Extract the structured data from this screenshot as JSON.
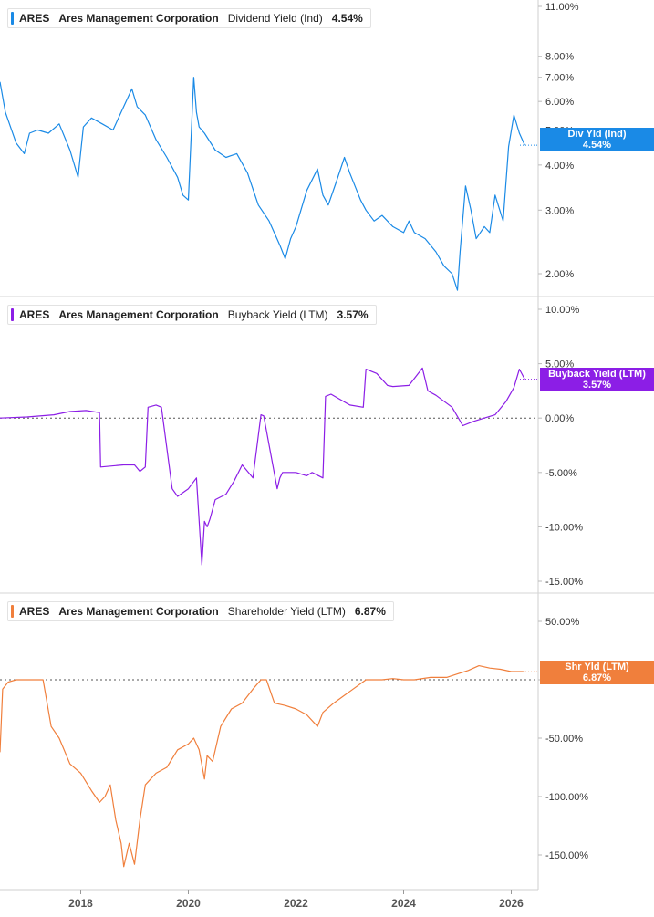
{
  "x_axis": {
    "ticks": [
      "2018",
      "2020",
      "2022",
      "2024",
      "2026"
    ]
  },
  "colors": {
    "dividend": "#1a8ae6",
    "buyback": "#8c1ee6",
    "shareholder": "#f07f3c"
  },
  "chart_data": [
    {
      "type": "line",
      "ticker": "ARES",
      "company": "Ares Management Corporation",
      "metric": "Dividend Yield (Ind)",
      "current_value": "4.54%",
      "tag_title": "Div Yld (Ind)",
      "tag_value": "4.54%",
      "scale": "log",
      "ylim": [
        1.6,
        11.5
      ],
      "y_ticks": [
        {
          "value": 11,
          "label": "11.00%"
        },
        {
          "value": 8,
          "label": "8.00%"
        },
        {
          "value": 7,
          "label": "7.00%"
        },
        {
          "value": 6,
          "label": "6.00%"
        },
        {
          "value": 5,
          "label": "5.00%"
        },
        {
          "value": 4,
          "label": "4.00%"
        },
        {
          "value": 3,
          "label": "3.00%"
        },
        {
          "value": 2,
          "label": "2.00%"
        }
      ],
      "zero_line": false,
      "series": [
        {
          "x": [
            2016.5,
            2016.6,
            2016.8,
            2016.95,
            2017.05,
            2017.2,
            2017.4,
            2017.6,
            2017.8,
            2017.95,
            2018.05,
            2018.2,
            2018.4,
            2018.6,
            2018.75,
            2018.95,
            2019.05,
            2019.2,
            2019.4,
            2019.6,
            2019.8,
            2019.9,
            2020.0,
            2020.1,
            2020.15,
            2020.2,
            2020.3,
            2020.5,
            2020.7,
            2020.9,
            2021.1,
            2021.3,
            2021.5,
            2021.7,
            2021.8,
            2021.9,
            2022.0,
            2022.2,
            2022.4,
            2022.5,
            2022.6,
            2022.75,
            2022.9,
            2023.0,
            2023.2,
            2023.3,
            2023.45,
            2023.6,
            2023.8,
            2024.0,
            2024.1,
            2024.2,
            2024.4,
            2024.6,
            2024.75,
            2024.9,
            2025.0,
            2025.05,
            2025.15,
            2025.25,
            2025.35,
            2025.5,
            2025.6,
            2025.7,
            2025.85,
            2025.95,
            2026.05,
            2026.15,
            2026.25
          ],
          "y": [
            6.8,
            5.6,
            4.6,
            4.3,
            4.9,
            5.0,
            4.9,
            5.2,
            4.4,
            3.7,
            5.1,
            5.4,
            5.2,
            5.0,
            5.6,
            6.5,
            5.8,
            5.5,
            4.7,
            4.2,
            3.7,
            3.3,
            3.2,
            7.0,
            5.6,
            5.1,
            4.9,
            4.4,
            4.2,
            4.3,
            3.8,
            3.1,
            2.8,
            2.4,
            2.2,
            2.5,
            2.7,
            3.4,
            3.9,
            3.3,
            3.1,
            3.6,
            4.2,
            3.8,
            3.2,
            3.0,
            2.8,
            2.9,
            2.7,
            2.6,
            2.8,
            2.6,
            2.5,
            2.3,
            2.1,
            2.0,
            1.8,
            2.3,
            3.5,
            3.0,
            2.5,
            2.7,
            2.6,
            3.3,
            2.8,
            4.5,
            5.5,
            4.9,
            4.54
          ]
        }
      ]
    },
    {
      "type": "line",
      "ticker": "ARES",
      "company": "Ares Management Corporation",
      "metric": "Buyback Yield (LTM)",
      "current_value": "3.57%",
      "tag_title": "Buyback Yield (LTM)",
      "tag_value": "3.57%",
      "scale": "linear",
      "ylim": [
        -16,
        11
      ],
      "y_ticks": [
        {
          "value": 10,
          "label": "10.00%"
        },
        {
          "value": 5,
          "label": "5.00%"
        },
        {
          "value": 0,
          "label": "0.00%"
        },
        {
          "value": -5,
          "label": "-5.00%"
        },
        {
          "value": -10,
          "label": "-10.00%"
        },
        {
          "value": -15,
          "label": "-15.00%"
        }
      ],
      "zero_line": true,
      "series": [
        {
          "x": [
            2016.5,
            2017.0,
            2017.5,
            2017.8,
            2018.1,
            2018.35,
            2018.37,
            2018.8,
            2019.0,
            2019.1,
            2019.2,
            2019.25,
            2019.4,
            2019.5,
            2019.7,
            2019.8,
            2020.0,
            2020.15,
            2020.25,
            2020.3,
            2020.35,
            2020.4,
            2020.5,
            2020.7,
            2020.85,
            2021.0,
            2021.2,
            2021.35,
            2021.4,
            2021.65,
            2021.7,
            2021.75,
            2022.0,
            2022.2,
            2022.3,
            2022.5,
            2022.55,
            2022.65,
            2023.0,
            2023.25,
            2023.3,
            2023.5,
            2023.7,
            2023.8,
            2024.1,
            2024.35,
            2024.45,
            2024.6,
            2024.9,
            2025.1,
            2025.3,
            2025.5,
            2025.7,
            2025.9,
            2026.05,
            2026.15,
            2026.25
          ],
          "y": [
            0.0,
            0.1,
            0.3,
            0.6,
            0.7,
            0.5,
            -4.5,
            -4.3,
            -4.3,
            -4.9,
            -4.5,
            1.0,
            1.2,
            1.0,
            -6.5,
            -7.2,
            -6.5,
            -5.5,
            -13.5,
            -9.5,
            -10.0,
            -9.3,
            -7.5,
            -7.0,
            -5.8,
            -4.3,
            -5.5,
            0.3,
            0.2,
            -6.5,
            -5.5,
            -5.0,
            -5.0,
            -5.3,
            -5.0,
            -5.5,
            2.0,
            2.2,
            1.2,
            1.0,
            4.5,
            4.1,
            3.0,
            2.9,
            3.0,
            4.6,
            2.5,
            2.1,
            1.0,
            -0.7,
            -0.3,
            0.0,
            0.3,
            1.5,
            2.8,
            4.5,
            3.57
          ]
        }
      ]
    },
    {
      "type": "line",
      "ticker": "ARES",
      "company": "Ares Management Corporation",
      "metric": "Shareholder Yield (LTM)",
      "current_value": "6.87%",
      "tag_title": "Shr Yld (LTM)",
      "tag_value": "6.87%",
      "scale": "linear",
      "ylim": [
        -170,
        70
      ],
      "y_ticks": [
        {
          "value": 50,
          "label": "50.00%"
        },
        {
          "value": 0,
          "label": "0.00%"
        },
        {
          "value": -50,
          "label": "-50.00%"
        },
        {
          "value": -100,
          "label": "-100.00%"
        },
        {
          "value": -150,
          "label": "-150.00%"
        }
      ],
      "zero_line": true,
      "series": [
        {
          "x": [
            2016.5,
            2016.55,
            2016.65,
            2016.8,
            2016.85,
            2017.1,
            2017.3,
            2017.45,
            2017.6,
            2017.8,
            2018.0,
            2018.2,
            2018.35,
            2018.45,
            2018.55,
            2018.65,
            2018.75,
            2018.8,
            2018.9,
            2019.0,
            2019.1,
            2019.2,
            2019.4,
            2019.6,
            2019.8,
            2020.0,
            2020.1,
            2020.2,
            2020.3,
            2020.35,
            2020.45,
            2020.6,
            2020.8,
            2021.0,
            2021.2,
            2021.35,
            2021.45,
            2021.6,
            2021.8,
            2022.0,
            2022.2,
            2022.4,
            2022.5,
            2022.7,
            2023.0,
            2023.3,
            2023.6,
            2023.8,
            2024.0,
            2024.2,
            2024.5,
            2024.8,
            2025.0,
            2025.2,
            2025.4,
            2025.6,
            2025.8,
            2026.0,
            2026.2,
            2026.25
          ],
          "y": [
            -62,
            -8,
            -2,
            0,
            0,
            0,
            0,
            -40,
            -50,
            -72,
            -80,
            -95,
            -105,
            -100,
            -90,
            -120,
            -140,
            -160,
            -140,
            -158,
            -120,
            -90,
            -80,
            -75,
            -60,
            -55,
            -50,
            -60,
            -85,
            -65,
            -70,
            -40,
            -25,
            -20,
            -8,
            0,
            0,
            -20,
            -22,
            -25,
            -30,
            -40,
            -28,
            -20,
            -10,
            0,
            0,
            1,
            0,
            0,
            2,
            2,
            5,
            8,
            12,
            10,
            9,
            7,
            7,
            6.87
          ]
        }
      ]
    }
  ]
}
